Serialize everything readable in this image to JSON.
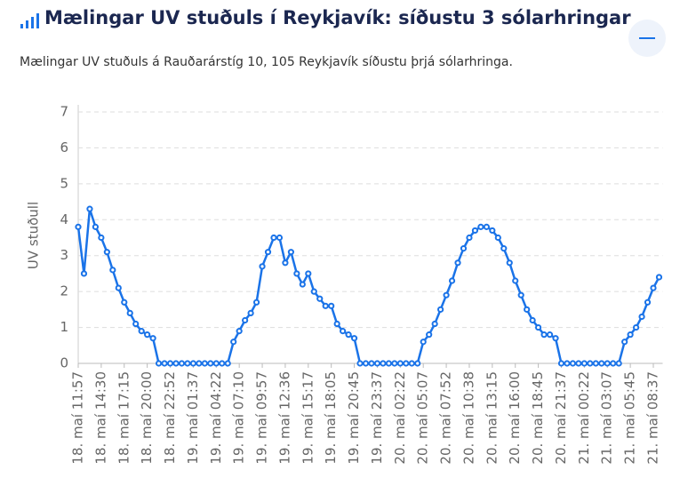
{
  "chart_data": {
    "type": "line",
    "title": "Mælingar UV stuðuls í Reykjavík: síðustu 3 sólarhringar",
    "subtitle": "Mælingar UV stuðuls á Rauðarárstíg 10, 105 Reykjavík síðustu þrjá sólarhringa.",
    "y_label": "UV stuðull",
    "color": "#1a73e8",
    "grid": true,
    "ylim": [
      0,
      7
    ],
    "yticks": [
      0,
      1,
      2,
      3,
      4,
      5,
      6,
      7
    ],
    "categories": [
      "18. maí 11:57",
      null,
      null,
      null,
      "18. maí 14:30",
      null,
      null,
      null,
      "18. maí 17:15",
      null,
      null,
      null,
      "18. maí 20:00",
      null,
      null,
      null,
      "18. maí 22:52",
      null,
      null,
      null,
      "19. maí 01:37",
      null,
      null,
      null,
      "19. maí 04:22",
      null,
      null,
      null,
      "19. maí 07:10",
      null,
      null,
      null,
      "19. maí 09:57",
      null,
      null,
      null,
      "19. maí 12:36",
      null,
      null,
      null,
      "19. maí 15:17",
      null,
      null,
      null,
      "19. maí 18:05",
      null,
      null,
      null,
      "19. maí 20:45",
      null,
      null,
      null,
      "19. maí 23:37",
      null,
      null,
      null,
      "20. maí 02:22",
      null,
      null,
      null,
      "20. maí 05:07",
      null,
      null,
      null,
      "20. maí 07:52",
      null,
      null,
      null,
      "20. maí 10:38",
      null,
      null,
      null,
      "20. maí 13:15",
      null,
      null,
      null,
      "20. maí 16:00",
      null,
      null,
      null,
      "20. maí 18:45",
      null,
      null,
      null,
      "20. maí 21:37",
      null,
      null,
      null,
      "21. maí 00:22",
      null,
      null,
      null,
      "21. maí 03:07",
      null,
      null,
      null,
      "21. maí 05:45",
      null,
      null,
      null,
      "21. maí 08:37",
      null
    ],
    "values": [
      3.8,
      2.5,
      4.3,
      3.8,
      3.5,
      3.1,
      2.6,
      2.1,
      1.7,
      1.4,
      1.1,
      0.9,
      0.8,
      0.7,
      0,
      0,
      0,
      0,
      0,
      0,
      0,
      0,
      0,
      0,
      0,
      0,
      0,
      0.6,
      0.9,
      1.2,
      1.4,
      1.7,
      2.7,
      3.1,
      3.5,
      3.5,
      2.8,
      3.1,
      2.5,
      2.2,
      2.5,
      2.0,
      1.8,
      1.6,
      1.6,
      1.1,
      0.9,
      0.8,
      0.7,
      0,
      0,
      0,
      0,
      0,
      0,
      0,
      0,
      0,
      0,
      0,
      0.6,
      0.8,
      1.1,
      1.5,
      1.9,
      2.3,
      2.8,
      3.2,
      3.5,
      3.7,
      3.8,
      3.8,
      3.7,
      3.5,
      3.2,
      2.8,
      2.3,
      1.9,
      1.5,
      1.2,
      1.0,
      0.8,
      0.8,
      0.7,
      0,
      0,
      0,
      0,
      0,
      0,
      0,
      0,
      0,
      0,
      0,
      0.6,
      0.8,
      1.0,
      1.3,
      1.7,
      2.1,
      2.4
    ]
  }
}
